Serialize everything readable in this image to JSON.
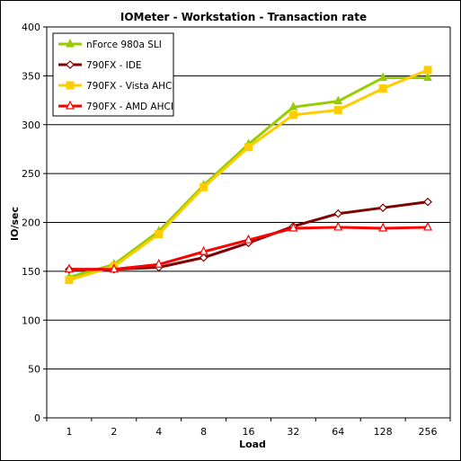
{
  "chart_data": {
    "type": "line",
    "title": "IOMeter - Workstation - Transaction rate",
    "xlabel": "Load",
    "ylabel": "IO/sec",
    "categories": [
      "1",
      "2",
      "4",
      "8",
      "16",
      "32",
      "64",
      "128",
      "256"
    ],
    "ylim": [
      0,
      400
    ],
    "yticks": [
      0,
      50,
      100,
      150,
      200,
      250,
      300,
      350,
      400
    ],
    "grid": "horizontal",
    "legend_position": "top-left",
    "series": [
      {
        "name": "nForce 980a SLI",
        "color": "#99cc00",
        "marker": "triangle-filled",
        "values": [
          144,
          157,
          191,
          238,
          280,
          318,
          324,
          348,
          348
        ]
      },
      {
        "name": "790FX - IDE",
        "color": "#800000",
        "marker": "diamond-open",
        "values": [
          152,
          152,
          154,
          164,
          179,
          196,
          209,
          215,
          221
        ]
      },
      {
        "name": "790FX - Vista AHCI",
        "color": "#ffcc00",
        "marker": "square-filled",
        "values": [
          141,
          155,
          188,
          236,
          277,
          310,
          315,
          337,
          356
        ]
      },
      {
        "name": "790FX - AMD AHCI",
        "color": "#ff0000",
        "marker": "triangle-open",
        "values": [
          152,
          152,
          157,
          170,
          182,
          194,
          195,
          194,
          195
        ]
      }
    ]
  }
}
